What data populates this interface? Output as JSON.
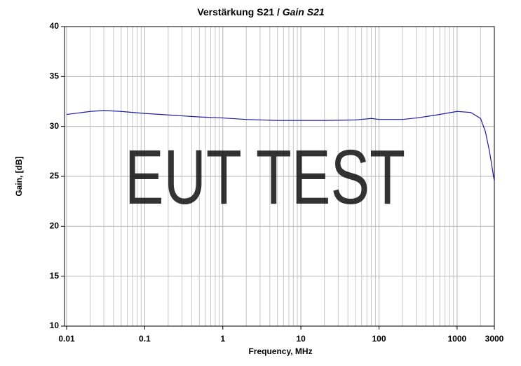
{
  "chart_data": {
    "type": "line",
    "title": [
      "Verstärkung S21 /",
      "Gain S21"
    ],
    "x_label": "Frequency, MHz",
    "y_label": "Gain, [dB]",
    "annotation": "EUT TEST",
    "x": [
      0.01,
      0.02,
      0.03,
      0.05,
      0.1,
      0.2,
      0.5,
      1,
      2,
      5,
      10,
      20,
      50,
      80,
      100,
      200,
      300,
      500,
      1000,
      1500,
      2000,
      2300,
      2600,
      3000
    ],
    "series": [
      {
        "name": "S21",
        "color": "#1a1aa8",
        "values": [
          31.2,
          31.5,
          31.6,
          31.5,
          31.3,
          31.15,
          30.95,
          30.85,
          30.7,
          30.6,
          30.6,
          30.6,
          30.65,
          30.8,
          30.7,
          30.7,
          30.85,
          31.1,
          31.5,
          31.4,
          30.8,
          29.5,
          27.5,
          24.5
        ]
      }
    ],
    "xlim": [
      0.01,
      3000
    ],
    "xticks": [
      0.01,
      0.1,
      1,
      10,
      100,
      1000,
      3000
    ],
    "xscale": "log",
    "ylim": [
      10,
      40
    ],
    "yticks": [
      10,
      15,
      20,
      25,
      30,
      35,
      40
    ],
    "grid": true
  }
}
